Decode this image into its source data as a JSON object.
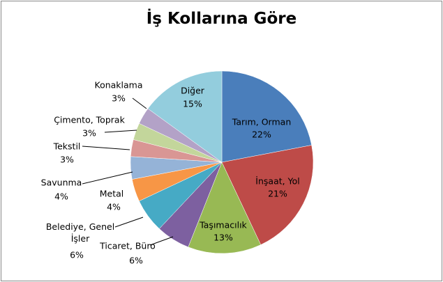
{
  "chart_data": {
    "type": "pie",
    "title": "İş Kollarına Göre",
    "categories": [
      "Tarım, Orman",
      "İnşaat, Yol",
      "Taşımacılık",
      "Ticaret, Büro",
      "Belediye, Genel İşler",
      "Metal",
      "Savunma",
      "Tekstil",
      "Çimento, Toprak",
      "Konaklama",
      "Diğer"
    ],
    "values": [
      22,
      21,
      13,
      6,
      6,
      4,
      4,
      3,
      3,
      3,
      15
    ],
    "value_labels": [
      "22%",
      "21%",
      "13%",
      "6%",
      "6%",
      "4%",
      "4%",
      "3%",
      "3%",
      "3%",
      "15%"
    ],
    "colors": [
      "#4a7ebb",
      "#be4b48",
      "#98b954",
      "#7d60a0",
      "#46aac5",
      "#f79646",
      "#95b3d7",
      "#d99694",
      "#c3d69b",
      "#b3a2c7",
      "#93cddd"
    ]
  }
}
